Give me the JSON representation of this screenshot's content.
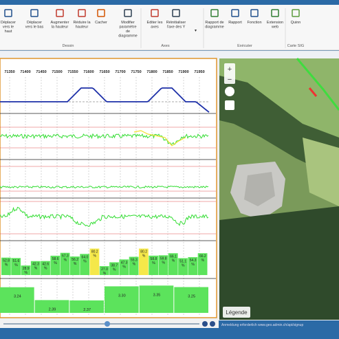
{
  "ribbon": {
    "groups": [
      {
        "label": "Dessin",
        "buttons": [
          "Déplacer vers le haut",
          "Déplacer vers le bas",
          "Augmenter la hauteur",
          "Réduire la hauteur",
          "Cacher",
          "Modifier paramètre de diagramme"
        ]
      },
      {
        "label": "Axes",
        "buttons": [
          "Editer les axes",
          "Réinitialiser l'axe des Y"
        ]
      },
      {
        "label": "Exécuter",
        "buttons": [
          "Rapport de diagramme",
          "Rapport",
          "Fonction",
          "Extension web"
        ]
      },
      {
        "label": "Carte SIG",
        "buttons": [
          "Quinn"
        ]
      }
    ]
  },
  "chart": {
    "x_ticks": [
      71350,
      71400,
      71450,
      71500,
      71550,
      71600,
      71650,
      71700,
      71750,
      71800,
      71850,
      71900,
      71950
    ],
    "bars": {
      "values": [
        52.8,
        51.6,
        28.9,
        42.3,
        42.6,
        58.6,
        67.3,
        56.2,
        64.0,
        80.2,
        27.0,
        38.7,
        47.3,
        55.3,
        80.2,
        58.8,
        59.8,
        66.1,
        51.1,
        54.3,
        66.2
      ],
      "value_labels": [
        "52.8 %",
        "51.6 %",
        "28.9 %",
        "42.3 %",
        "42.6 %",
        "58.6 %",
        "67.3 %",
        "56.2 %",
        "64.0 %",
        "80.2 %",
        "27.0 %",
        "38.7 %",
        "47.3 %",
        "55.3 %",
        "80.2 %",
        "58.8 %",
        "59.8 %",
        "66.1 %",
        "51.1 %",
        "54.3 %",
        "66.2 %"
      ]
    },
    "blocks": {
      "values": [
        3.24,
        2.39,
        2.37,
        3.3,
        3.35,
        3.25
      ],
      "value_labels": [
        "3.24",
        "2.39",
        "2.37",
        "3.30",
        "3.35",
        "3.25"
      ]
    }
  },
  "map": {
    "legend": "Légende",
    "attribution": "Anmeldung erforderlich www.geo.admin.ch/api/signup"
  }
}
